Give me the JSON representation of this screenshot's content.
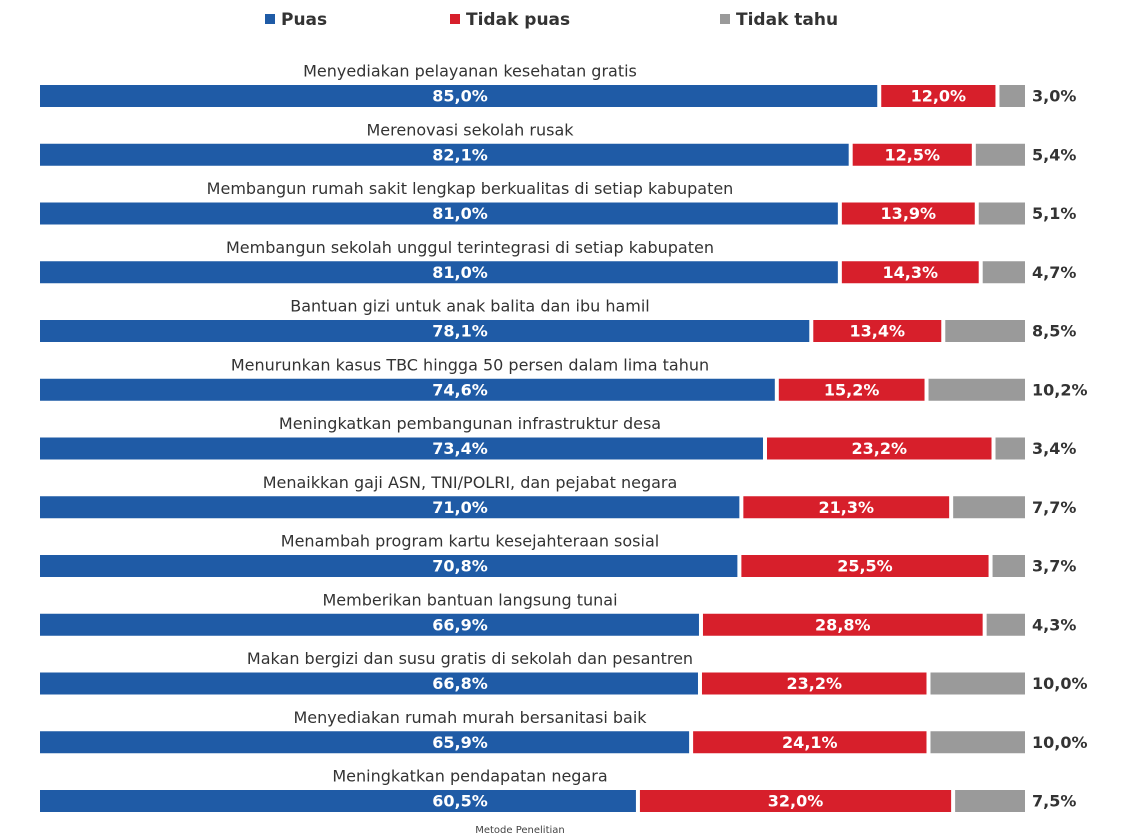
{
  "chart_data": {
    "type": "stacked-bar-horizontal",
    "categories": [
      "Menyediakan pelayanan kesehatan gratis",
      "Merenovasi sekolah rusak",
      "Membangun rumah sakit lengkap berkualitas di setiap kabupaten",
      "Membangun sekolah unggul terintegrasi di setiap kabupaten",
      "Bantuan gizi untuk anak balita dan ibu hamil",
      "Menurunkan kasus TBC hingga 50 persen dalam lima tahun",
      "Meningkatkan pembangunan infrastruktur desa",
      "Menaikkan gaji ASN, TNI/POLRI, dan pejabat negara",
      "Menambah program kartu kesejahteraan sosial",
      "Memberikan bantuan langsung tunai",
      "Makan bergizi dan susu gratis di sekolah dan pesantren",
      "Menyediakan rumah murah bersanitasi baik",
      "Meningkatkan pendapatan negara"
    ],
    "series": [
      {
        "name": "Puas",
        "color": "#1f5ba6",
        "values": [
          85.0,
          82.1,
          81.0,
          81.0,
          78.1,
          74.6,
          73.4,
          71.0,
          70.8,
          66.9,
          66.8,
          65.9,
          60.5
        ],
        "value_labels": [
          "85,0%",
          "82,1%",
          "81,0%",
          "81,0%",
          "78,1%",
          "74,6%",
          "73,4%",
          "71,0%",
          "70,8%",
          "66,9%",
          "66,8%",
          "65,9%",
          "60,5%"
        ]
      },
      {
        "name": "Tidak puas",
        "color": "#d71f2b",
        "values": [
          12.0,
          12.5,
          13.9,
          14.3,
          13.4,
          15.2,
          23.2,
          21.3,
          25.5,
          28.8,
          23.2,
          24.1,
          32.0
        ],
        "value_labels": [
          "12,0%",
          "12,5%",
          "13,9%",
          "14,3%",
          "13,4%",
          "15,2%",
          "23,2%",
          "21,3%",
          "25,5%",
          "28,8%",
          "23,2%",
          "24,1%",
          "32,0%"
        ]
      },
      {
        "name": "Tidak tahu",
        "color": "#9a9a9a",
        "values": [
          3.0,
          5.4,
          5.1,
          4.7,
          8.5,
          10.2,
          3.4,
          7.7,
          3.7,
          4.3,
          10.0,
          10.0,
          7.5
        ],
        "value_labels": [
          "3,0%",
          "5,4%",
          "5,1%",
          "4,7%",
          "8,5%",
          "10,2%",
          "3,4%",
          "7,7%",
          "3,7%",
          "4,3%",
          "10,0%",
          "10,0%",
          "7,5%"
        ]
      }
    ],
    "note": "Metode Penelitian"
  }
}
